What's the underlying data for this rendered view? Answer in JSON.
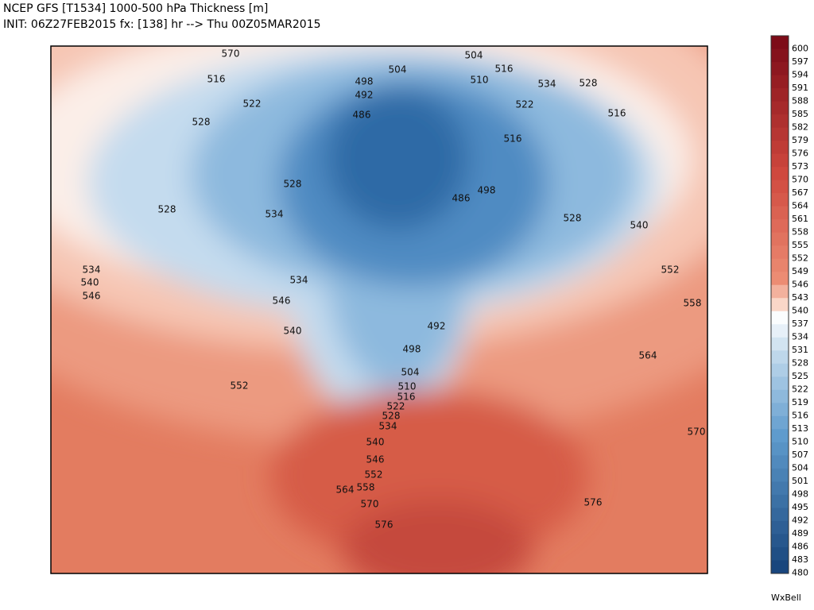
{
  "header": {
    "title": "NCEP GFS [T1534] 1000-500 hPa Thickness [m]",
    "subtitle": "INIT: 06Z27FEB2015 fx: [138] hr --> Thu 00Z05MAR2015"
  },
  "colorbar": {
    "labels": [
      600,
      597,
      594,
      591,
      588,
      585,
      582,
      579,
      576,
      573,
      570,
      567,
      564,
      561,
      558,
      555,
      552,
      549,
      546,
      543,
      540,
      537,
      534,
      531,
      528,
      525,
      522,
      519,
      516,
      513,
      510,
      507,
      504,
      501,
      498,
      495,
      492,
      489,
      486,
      483,
      480
    ]
  },
  "contour_labels": [
    570,
    516,
    522,
    528,
    528,
    534,
    540,
    546,
    498,
    504,
    492,
    486,
    504,
    516,
    510,
    534,
    528,
    522,
    516,
    516,
    528,
    534,
    486,
    498,
    528,
    540,
    552,
    558,
    534,
    546,
    540,
    492,
    498,
    564,
    504,
    510,
    516,
    522,
    528,
    534,
    552,
    540,
    546,
    552,
    570,
    564,
    558,
    570,
    576,
    576
  ],
  "brand": "WxBell"
}
